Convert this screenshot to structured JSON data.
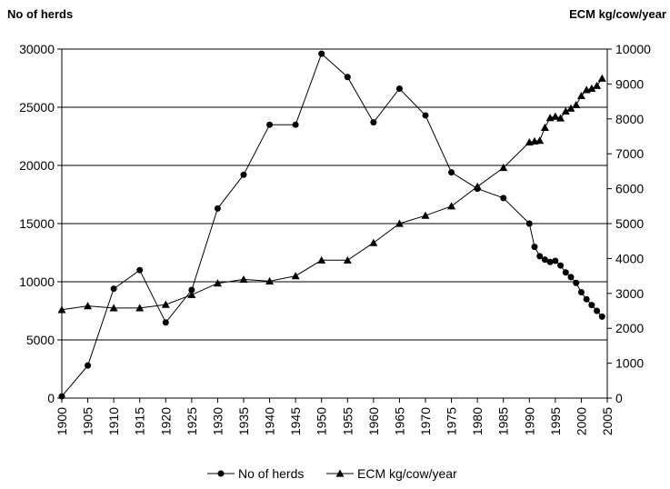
{
  "chart_data": {
    "type": "line",
    "title": "",
    "xlabel": "",
    "ylabel_left": "No of herds",
    "ylabel_right": "ECM kg/cow/year",
    "x_ticks": [
      1900,
      1905,
      1910,
      1915,
      1920,
      1925,
      1930,
      1935,
      1940,
      1945,
      1950,
      1955,
      1960,
      1965,
      1970,
      1975,
      1980,
      1985,
      1990,
      1995,
      2000,
      2005
    ],
    "xlim": [
      1900,
      2005
    ],
    "ylim_left": [
      0,
      30000
    ],
    "ylim_right": [
      0,
      10000
    ],
    "y_ticks_left": [
      0,
      5000,
      10000,
      15000,
      20000,
      25000,
      30000
    ],
    "y_ticks_right": [
      0,
      1000,
      2000,
      3000,
      4000,
      5000,
      6000,
      7000,
      8000,
      9000,
      10000
    ],
    "gridlines": "horizontal",
    "legend_position": "bottom",
    "series": [
      {
        "name": "No of herds",
        "axis": "left",
        "marker": "circle",
        "color": "#000000",
        "x": [
          1900,
          1905,
          1910,
          1915,
          1920,
          1925,
          1930,
          1935,
          1940,
          1945,
          1950,
          1955,
          1960,
          1965,
          1970,
          1975,
          1980,
          1985,
          1990,
          1991,
          1992,
          1993,
          1994,
          1995,
          1996,
          1997,
          1998,
          1999,
          2000,
          2001,
          2002,
          2003,
          2004
        ],
        "y": [
          150,
          2800,
          9400,
          11000,
          6500,
          9300,
          16300,
          19200,
          23500,
          23500,
          29600,
          27600,
          23700,
          26600,
          24300,
          19400,
          18000,
          17200,
          15000,
          13000,
          12200,
          11900,
          11700,
          11800,
          11400,
          10800,
          10400,
          9900,
          9100,
          8500,
          8000,
          7500,
          7000
        ]
      },
      {
        "name": "ECM kg/cow/year",
        "axis": "right",
        "marker": "triangle",
        "color": "#000000",
        "x": [
          1900,
          1905,
          1910,
          1915,
          1920,
          1925,
          1930,
          1935,
          1940,
          1945,
          1950,
          1955,
          1960,
          1965,
          1970,
          1975,
          1980,
          1985,
          1990,
          1991,
          1992,
          1993,
          1994,
          1995,
          1996,
          1997,
          1998,
          1999,
          2000,
          2001,
          2002,
          2003,
          2004
        ],
        "y": [
          2530,
          2640,
          2580,
          2580,
          2680,
          2960,
          3290,
          3400,
          3350,
          3500,
          3950,
          3950,
          4450,
          5000,
          5230,
          5500,
          6060,
          6600,
          7330,
          7360,
          7380,
          7750,
          8030,
          8070,
          8020,
          8220,
          8300,
          8400,
          8660,
          8830,
          8870,
          8950,
          9160
        ]
      }
    ]
  }
}
